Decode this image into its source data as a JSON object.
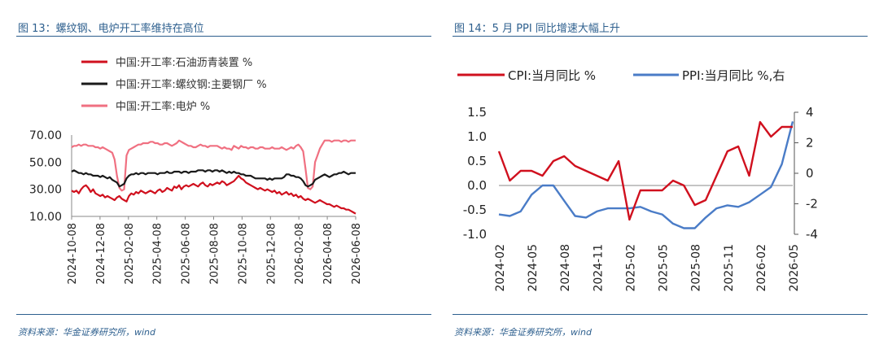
{
  "left": {
    "title": "图 13：螺纹钢、电炉开工率维持在高位",
    "source": "资料来源：华金证券研究所，wind",
    "chart_data": {
      "type": "line",
      "title": "",
      "xlabel": "",
      "ylabel": "",
      "ylim": [
        10,
        70
      ],
      "yticks": [
        "10.00",
        "30.00",
        "50.00",
        "70.00"
      ],
      "xticks": [
        "2024-10-08",
        "2024-12-08",
        "2025-02-08",
        "2025-04-08",
        "2025-06-08",
        "2025-08-08",
        "2025-10-08",
        "2025-12-08",
        "2026-02-08",
        "2026-04-08",
        "2026-06-08"
      ],
      "legend": "top-left",
      "series": [
        {
          "name": "中国:开工率:石油沥青装置 %",
          "color": "#d0101e",
          "values": [
            29,
            28,
            29,
            27,
            30,
            32,
            33,
            31,
            28,
            30,
            27,
            26,
            25,
            26,
            24,
            25,
            24,
            23,
            22,
            24,
            25,
            23,
            22,
            21,
            25,
            27,
            26,
            28,
            27,
            29,
            28,
            27,
            28,
            29,
            28,
            27,
            29,
            30,
            28,
            29,
            31,
            30,
            29,
            32,
            31,
            33,
            30,
            32,
            33,
            32,
            33,
            34,
            33,
            32,
            34,
            35,
            33,
            32,
            34,
            33,
            34,
            35,
            34,
            36,
            35,
            33,
            34,
            35,
            36,
            38,
            40,
            38,
            37,
            35,
            34,
            33,
            32,
            31,
            30,
            31,
            30,
            29,
            30,
            29,
            28,
            29,
            27,
            28,
            26,
            27,
            28,
            26,
            27,
            25,
            26,
            24,
            25,
            23,
            22,
            23,
            22,
            21,
            20,
            21,
            22,
            21,
            20,
            19,
            19,
            18,
            17,
            18,
            17,
            16,
            16,
            15,
            15,
            14,
            13,
            12
          ]
        },
        {
          "name": "中国:开工率:螺纹钢:主要钢厂 %",
          "color": "#1a1a1a",
          "values": [
            43,
            44,
            43,
            42,
            42,
            41,
            42,
            41,
            41,
            40,
            40,
            40,
            39,
            40,
            39,
            38,
            39,
            37,
            36,
            35,
            32,
            33,
            34,
            38,
            40,
            41,
            41,
            42,
            41,
            42,
            42,
            41,
            42,
            42,
            42,
            42,
            41,
            42,
            42,
            42,
            43,
            42,
            42,
            43,
            43,
            43,
            42,
            43,
            43,
            42,
            43,
            43,
            43,
            44,
            44,
            44,
            43,
            44,
            44,
            43,
            44,
            44,
            43,
            44,
            43,
            42,
            43,
            42,
            43,
            42,
            42,
            41,
            41,
            40,
            40,
            40,
            39,
            38,
            38,
            38,
            38,
            38,
            37,
            38,
            37,
            38,
            38,
            38,
            38,
            39,
            41,
            41,
            40,
            40,
            39,
            39,
            38,
            36,
            33,
            32,
            33,
            34,
            37,
            38,
            39,
            40,
            41,
            40,
            39,
            40,
            41,
            41,
            42,
            42,
            43,
            42,
            41,
            42,
            42,
            42
          ]
        },
        {
          "name": "中国:开工率:电炉 %",
          "color": "#f07081",
          "values": [
            61,
            62,
            62,
            63,
            62,
            63,
            63,
            62,
            62,
            62,
            61,
            61,
            60,
            61,
            60,
            59,
            58,
            57,
            52,
            40,
            31,
            29,
            30,
            55,
            59,
            60,
            61,
            62,
            63,
            63,
            64,
            64,
            64,
            65,
            65,
            64,
            64,
            63,
            63,
            64,
            64,
            63,
            62,
            63,
            64,
            66,
            65,
            64,
            63,
            62,
            62,
            61,
            61,
            62,
            63,
            62,
            62,
            61,
            62,
            62,
            62,
            62,
            61,
            60,
            61,
            60,
            60,
            59,
            62,
            61,
            60,
            62,
            61,
            61,
            60,
            61,
            61,
            60,
            60,
            61,
            61,
            60,
            60,
            60,
            61,
            60,
            60,
            60,
            61,
            60,
            59,
            60,
            61,
            60,
            62,
            63,
            61,
            58,
            45,
            31,
            30,
            32,
            50,
            55,
            60,
            63,
            66,
            66,
            66,
            65,
            66,
            66,
            66,
            65,
            66,
            66,
            65,
            66,
            66,
            66
          ]
        }
      ]
    }
  },
  "right": {
    "title": "图 14：5 月 PPI 同比增速大幅上升",
    "source": "资料来源：华金证券研究所，wind",
    "chart_data": {
      "type": "line",
      "title": "",
      "xlabel": "",
      "ylabel": "",
      "ylim_left": [
        -1.0,
        1.5
      ],
      "ylim_right": [
        -4,
        4
      ],
      "yticks_left": [
        "1.5",
        "1.0",
        "0.5",
        "0.0",
        "-0.5",
        "-1.0"
      ],
      "yticks_right": [
        "4",
        "2",
        "0",
        "-2",
        "-4"
      ],
      "xticks": [
        "2024-02",
        "2024-05",
        "2024-08",
        "2024-11",
        "2025-02",
        "2025-05",
        "2025-08",
        "2025-11",
        "2026-02",
        "2026-05"
      ],
      "legend": "top",
      "series": [
        {
          "name": "CPI:当月同比 %",
          "axis": "left",
          "color": "#d0101e",
          "values": [
            0.7,
            0.1,
            0.3,
            0.3,
            0.2,
            0.5,
            0.6,
            0.4,
            0.3,
            0.2,
            0.1,
            0.5,
            -0.7,
            -0.1,
            -0.1,
            -0.1,
            0.1,
            0.0,
            -0.4,
            -0.3,
            0.2,
            0.7,
            0.8,
            0.2,
            1.3,
            1.0,
            1.2,
            1.2
          ]
        },
        {
          "name": "PPI:当月同比 %,右",
          "axis": "right",
          "color": "#4a7cc7",
          "values": [
            -2.7,
            -2.8,
            -2.5,
            -1.4,
            -0.8,
            -0.8,
            -1.8,
            -2.8,
            -2.9,
            -2.5,
            -2.3,
            -2.3,
            -2.3,
            -2.2,
            -2.5,
            -2.7,
            -3.3,
            -3.6,
            -3.6,
            -2.9,
            -2.3,
            -2.1,
            -2.2,
            -1.9,
            -1.4,
            -0.9,
            0.6,
            3.4
          ]
        }
      ]
    }
  }
}
